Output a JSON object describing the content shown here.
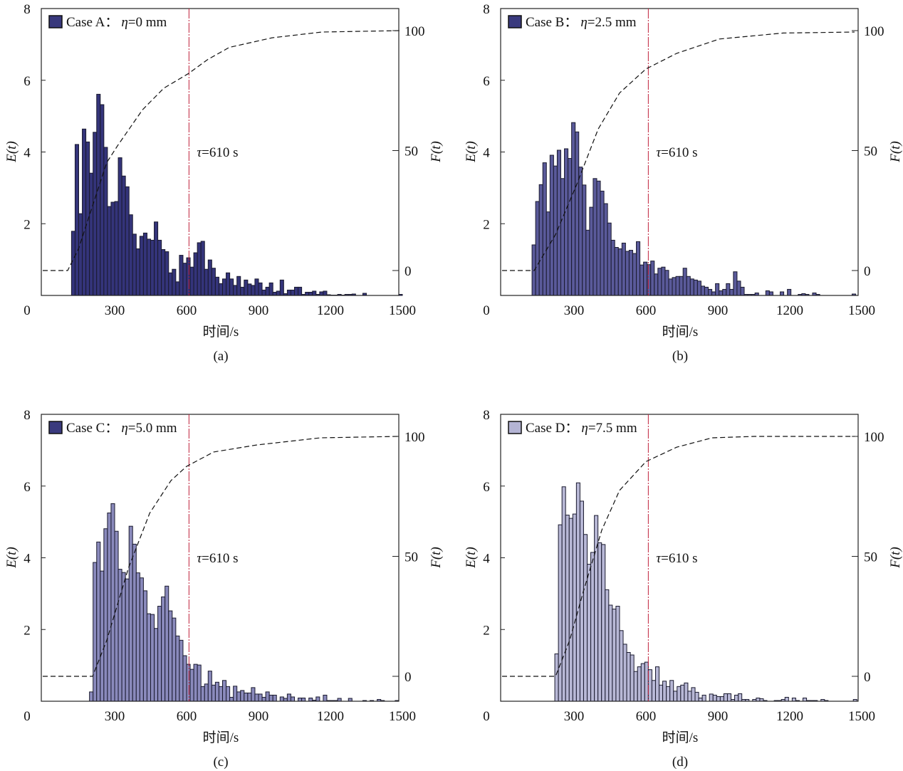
{
  "chart_data": [
    {
      "type": "bar",
      "panel": "(a)",
      "legend": {
        "case": "Case A：",
        "param": "η",
        "value": "=0 mm"
      },
      "bar_color": "#34347a",
      "swatch_color": "#38387c",
      "xlabel": "时间/s",
      "ylabel_left": "E(t)",
      "ylabel_right": "F(t)",
      "xlim": [
        0,
        1500
      ],
      "ylim_left": [
        0,
        8
      ],
      "ylim_right": [
        -10,
        109
      ],
      "x_ticks": [
        "300",
        "600",
        "900",
        "1200",
        "1500"
      ],
      "x_tick_values": [
        300,
        600,
        900,
        1200,
        1500
      ],
      "y_ticks_left": [
        "0",
        "2",
        "4",
        "6",
        "8"
      ],
      "y_ticks_right": [
        "0",
        "50",
        "100"
      ],
      "annotation": {
        "symbol": "τ",
        "text": "=610 s",
        "value": 610
      },
      "bin_start": 120,
      "bin_width": 15,
      "values": [
        1.79,
        4.21,
        2.28,
        4.64,
        4.28,
        3.41,
        4.55,
        5.61,
        5.32,
        4.13,
        2.48,
        2.6,
        2.62,
        3.84,
        3.33,
        3.03,
        2.25,
        1.71,
        1.3,
        1.65,
        1.74,
        1.57,
        1.54,
        2.05,
        1.54,
        1.28,
        1.22,
        0.63,
        0.73,
        0.38,
        1.12,
        0.9,
        1.05,
        0.79,
        1.19,
        1.47,
        1.51,
        0.73,
        0.99,
        0.76,
        0.51,
        0.33,
        0.46,
        0.63,
        0.46,
        0.28,
        0.53,
        0.23,
        0.43,
        0.32,
        0.28,
        0.46,
        0.35,
        0.15,
        0.23,
        0.35,
        0.09,
        0.12,
        0.43,
        0.05,
        0.15,
        0.15,
        0.23,
        0.23,
        0.03,
        0.09,
        0.09,
        0.12,
        0.03,
        0.1,
        0.12,
        0.02,
        0.01,
        0.01,
        0.03,
        0.01,
        0.03,
        0.03,
        0.04,
        0,
        0,
        0.06,
        0,
        0,
        0,
        0,
        0,
        0,
        0,
        0,
        0,
        0.03
      ],
      "cumulative_F": [
        [
          0,
          0
        ],
        [
          104,
          0
        ],
        [
          149,
          9
        ],
        [
          208,
          27
        ],
        [
          267,
          45
        ],
        [
          312,
          52
        ],
        [
          416,
          67
        ],
        [
          505,
          76
        ],
        [
          606,
          82
        ],
        [
          689,
          88
        ],
        [
          778,
          93
        ],
        [
          956,
          97
        ],
        [
          1164,
          99.4
        ],
        [
          1490,
          100
        ]
      ]
    },
    {
      "type": "bar",
      "panel": "(b)",
      "legend": {
        "case": "Case B：",
        "param": "η",
        "value": "=2.5 mm"
      },
      "bar_color": "#5a5a9a",
      "swatch_color": "#3a3a7e",
      "xlabel": "时间/s",
      "ylabel_left": "E(t)",
      "ylabel_right": "F(t)",
      "xlim": [
        0,
        1500
      ],
      "ylim_left": [
        0,
        8
      ],
      "ylim_right": [
        -10,
        109
      ],
      "x_ticks": [
        "300",
        "600",
        "900",
        "1200",
        "1500"
      ],
      "x_tick_values": [
        300,
        600,
        900,
        1200,
        1500
      ],
      "y_ticks_left": [
        "0",
        "2",
        "4",
        "6",
        "8"
      ],
      "y_ticks_right": [
        "0",
        "50",
        "100"
      ],
      "annotation": {
        "symbol": "τ",
        "text": "=610 s",
        "value": 610
      },
      "bin_start": 125,
      "bin_width": 15,
      "values": [
        1.41,
        2.62,
        3.09,
        3.7,
        2.33,
        3.91,
        3.61,
        4.05,
        3.26,
        4.09,
        3.82,
        4.82,
        4.56,
        3.58,
        3.08,
        1.82,
        2.46,
        3.26,
        3.19,
        2.91,
        2.56,
        2.02,
        1.54,
        1.34,
        1.3,
        1.46,
        1.23,
        1.26,
        1.17,
        1.5,
        0.85,
        0.93,
        0.86,
        0.96,
        0.6,
        0.76,
        0.79,
        0.7,
        0.46,
        0.5,
        0.53,
        0.53,
        0.76,
        0.53,
        0.46,
        0.43,
        0.4,
        0.26,
        0.23,
        0.17,
        0.1,
        0.33,
        0.13,
        0.17,
        0.33,
        0.17,
        0.66,
        0.4,
        0.23,
        0.03,
        0.03,
        0.03,
        0.07,
        0,
        0,
        0.13,
        0.1,
        0,
        0,
        0.1,
        0,
        0.17,
        0,
        0,
        0.03,
        0.05,
        0.03,
        0,
        0.07,
        0.03,
        0,
        0,
        0,
        0,
        0,
        0,
        0,
        0,
        0,
        0.04,
        0,
        0
      ],
      "cumulative_F": [
        [
          0,
          0
        ],
        [
          134,
          0
        ],
        [
          223,
          15
        ],
        [
          312,
          36
        ],
        [
          401,
          59
        ],
        [
          490,
          74
        ],
        [
          600,
          84
        ],
        [
          728,
          90.5
        ],
        [
          906,
          96.5
        ],
        [
          1173,
          99
        ],
        [
          1470,
          99.4
        ]
      ]
    },
    {
      "type": "bar",
      "panel": "(c)",
      "legend": {
        "case": "Case C：",
        "param": "η",
        "value": "=5.0 mm"
      },
      "bar_color": "#8a8abc",
      "swatch_color": "#3a3a7e",
      "xlabel": "时间/s",
      "ylabel_left": "E(t)",
      "ylabel_right": "F(t)",
      "xlim": [
        0,
        1500
      ],
      "ylim_left": [
        0,
        8
      ],
      "ylim_right": [
        -10,
        109
      ],
      "x_ticks": [
        "300",
        "600",
        "900",
        "1200",
        "1500"
      ],
      "x_tick_values": [
        300,
        600,
        900,
        1200,
        1500
      ],
      "y_ticks_left": [
        "0",
        "2",
        "4",
        "6",
        "8"
      ],
      "y_ticks_right": [
        "0",
        "50",
        "100"
      ],
      "annotation": {
        "symbol": "τ",
        "text": "=610 s",
        "value": 610
      },
      "bin_start": 195,
      "bin_width": 15,
      "values": [
        0.26,
        3.87,
        4.44,
        3.63,
        4.81,
        5.25,
        5.51,
        4.74,
        3.68,
        3.59,
        3.41,
        4.88,
        4.38,
        3.58,
        3.44,
        3.08,
        2.44,
        2.42,
        2.03,
        2.65,
        2.91,
        3.21,
        2.52,
        2.32,
        1.82,
        1.7,
        1.27,
        1.03,
        0.89,
        1.03,
        1.01,
        0.41,
        0.48,
        0.84,
        0.45,
        0.53,
        0.41,
        0.58,
        0.41,
        0.11,
        0.42,
        0.26,
        0.3,
        0.23,
        0.23,
        0.38,
        0.2,
        0.2,
        0.11,
        0.26,
        0.17,
        0.17,
        0,
        0.12,
        0.08,
        0.2,
        0.12,
        0,
        0.09,
        0.09,
        0,
        0.09,
        0.03,
        0.12,
        0,
        0.17,
        0.02,
        0.02,
        0.02,
        0.08,
        0,
        0,
        0.08,
        0,
        0,
        0,
        0.02,
        0,
        0.02,
        0,
        0.05,
        0.02,
        0,
        0,
        0,
        0.02
      ],
      "cumulative_F": [
        [
          0,
          0
        ],
        [
          208,
          0
        ],
        [
          267,
          15
        ],
        [
          357,
          45
        ],
        [
          446,
          68
        ],
        [
          535,
          81.6
        ],
        [
          600,
          87.5
        ],
        [
          713,
          93.5
        ],
        [
          891,
          96.4
        ],
        [
          1158,
          99.4
        ],
        [
          1485,
          100
        ]
      ]
    },
    {
      "type": "bar",
      "panel": "(d)",
      "legend": {
        "case": "Case D：",
        "param": "η",
        "value": "=7.5 mm"
      },
      "bar_color": "#b8b8d6",
      "swatch_color": "#b4b4d4",
      "xlabel": "时间/s",
      "ylabel_left": "E(t)",
      "ylabel_right": "F(t)",
      "xlim": [
        0,
        1500
      ],
      "ylim_left": [
        0,
        8
      ],
      "ylim_right": [
        -10,
        109
      ],
      "x_ticks": [
        "300",
        "600",
        "900",
        "1200",
        "1500"
      ],
      "x_tick_values": [
        300,
        600,
        900,
        1200,
        1500
      ],
      "y_ticks_left": [
        "0",
        "2",
        "4",
        "6",
        "8"
      ],
      "y_ticks_right": [
        "0",
        "50",
        "100"
      ],
      "annotation": {
        "symbol": "τ",
        "text": "=610 s",
        "value": 610
      },
      "bin_start": 220,
      "bin_width": 15,
      "values": [
        1.32,
        4.92,
        5.98,
        5.19,
        5.1,
        5.22,
        6.09,
        5.58,
        4.65,
        3.82,
        4.15,
        5.18,
        4.42,
        4.37,
        3.11,
        2.68,
        2.57,
        2.65,
        1.97,
        1.59,
        1.36,
        1.29,
        0.83,
        0.96,
        1.05,
        1.09,
        0.88,
        0.58,
        0.96,
        0.45,
        0.56,
        0.41,
        0.58,
        0.28,
        0.41,
        0.45,
        0.51,
        0.28,
        0.38,
        0.25,
        0.09,
        0.17,
        0,
        0.2,
        0.17,
        0.13,
        0.13,
        0.21,
        0.21,
        0.05,
        0.17,
        0.21,
        0.05,
        0.05,
        0,
        0.05,
        0.09,
        0.07,
        0.02,
        0,
        0,
        0.02,
        0.02,
        0.05,
        0.11,
        0,
        0.09,
        0.02,
        0,
        0.09,
        0.02,
        0.02,
        0.02,
        0,
        0.05,
        0.02,
        0,
        0,
        0,
        0,
        0,
        0,
        0,
        0.05
      ],
      "cumulative_F": [
        [
          0,
          0
        ],
        [
          223,
          0
        ],
        [
          282,
          15
        ],
        [
          341,
          36
        ],
        [
          416,
          61
        ],
        [
          490,
          77.5
        ],
        [
          600,
          89.5
        ],
        [
          728,
          95.5
        ],
        [
          876,
          99.4
        ],
        [
          1054,
          100
        ],
        [
          1470,
          100
        ]
      ]
    }
  ]
}
